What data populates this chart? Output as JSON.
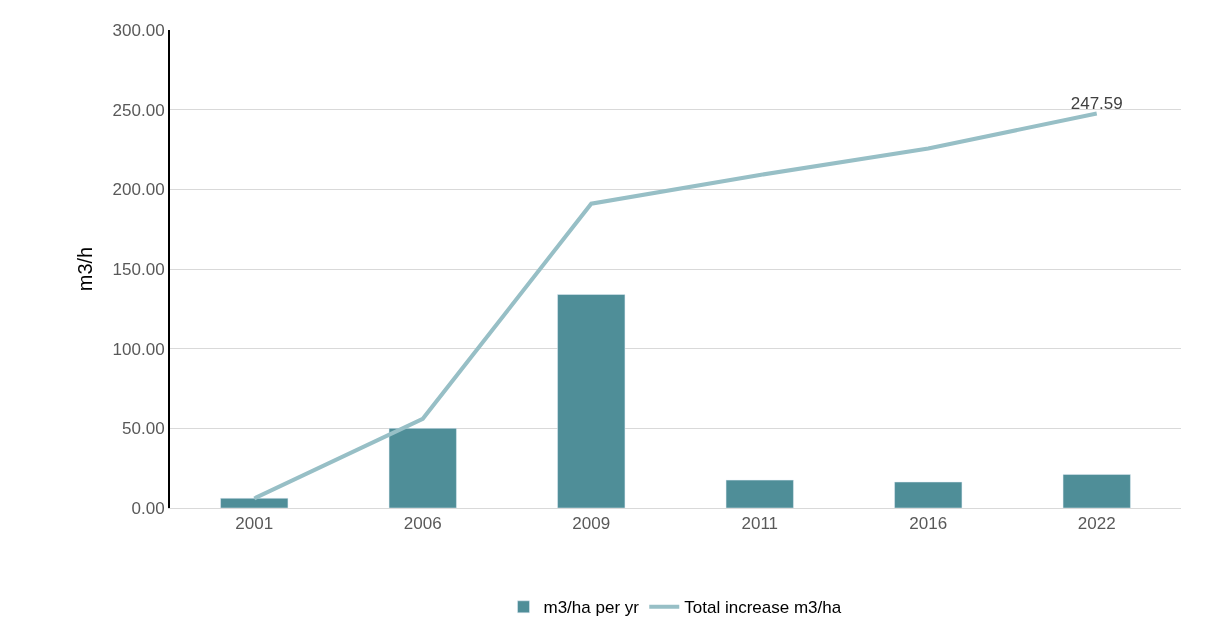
{
  "chart_data": {
    "type": "bar",
    "ylabel": "m3/h",
    "categories": [
      "2001",
      "2006",
      "2009",
      "2011",
      "2016",
      "2022"
    ],
    "series": [
      {
        "name": "m3/ha per yr",
        "color": "#4f8e98",
        "values": [
          6.1,
          50,
          134,
          17.5,
          16.3,
          21.1
        ]
      },
      {
        "name": "Total increase m3/ha",
        "type": "line",
        "color": "#97bfc6",
        "values": [
          6,
          56,
          191,
          209,
          225.6,
          247.59
        ],
        "value_labels": [
          null,
          null,
          null,
          null,
          null,
          "247.59"
        ]
      }
    ],
    "ylim": [
      0,
      300
    ],
    "yticks": [
      {
        "value": 0,
        "label": "0.00"
      },
      {
        "value": 50,
        "label": "50.00"
      },
      {
        "value": 100,
        "label": "100.00"
      },
      {
        "value": 150,
        "label": "150.00"
      },
      {
        "value": 200,
        "label": "200.00"
      },
      {
        "value": 250,
        "label": "250.00"
      },
      {
        "value": 300,
        "label": "300.00"
      }
    ],
    "grid": "y",
    "legend": "bottom",
    "marker": "none",
    "line_style": "solid"
  }
}
